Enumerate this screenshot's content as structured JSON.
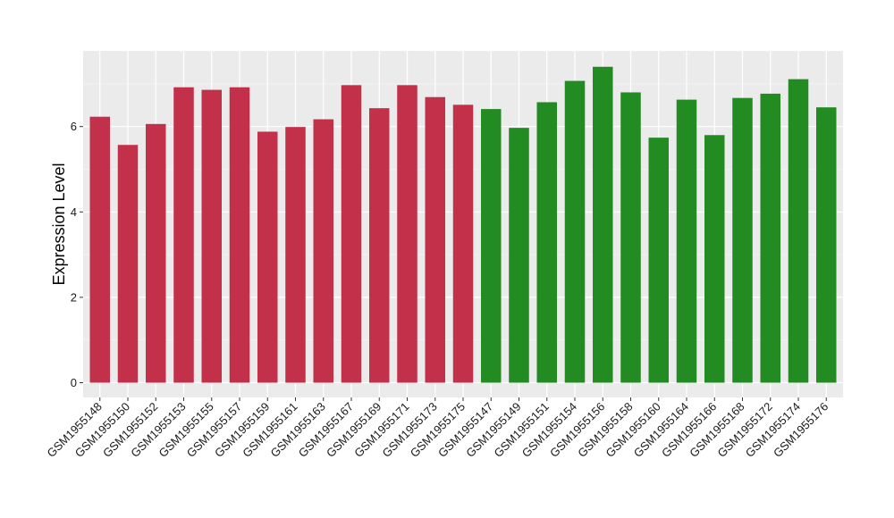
{
  "chart_data": {
    "type": "bar",
    "title": "",
    "xlabel": "",
    "ylabel": "Expression Level",
    "ylim": [
      0,
      7.75
    ],
    "yticks": [
      0,
      2,
      4,
      6
    ],
    "grid": true,
    "panel_background": "#ebebeb",
    "categories": [
      "GSM1955148",
      "GSM1955150",
      "GSM1955152",
      "GSM1955153",
      "GSM1955155",
      "GSM1955157",
      "GSM1955159",
      "GSM1955161",
      "GSM1955163",
      "GSM1955167",
      "GSM1955169",
      "GSM1955171",
      "GSM1955173",
      "GSM1955175",
      "GSM1955147",
      "GSM1955149",
      "GSM1955151",
      "GSM1955154",
      "GSM1955156",
      "GSM1955158",
      "GSM1955160",
      "GSM1955164",
      "GSM1955166",
      "GSM1955168",
      "GSM1955172",
      "GSM1955174",
      "GSM1955176"
    ],
    "values": [
      6.23,
      5.57,
      6.06,
      6.92,
      6.86,
      6.92,
      5.88,
      5.99,
      6.17,
      6.97,
      6.43,
      6.97,
      6.69,
      6.51,
      6.41,
      5.97,
      6.57,
      7.07,
      7.4,
      6.8,
      5.74,
      6.63,
      5.8,
      6.67,
      6.77,
      7.11,
      6.45
    ],
    "bar_colors": [
      "#c3304a",
      "#c3304a",
      "#c3304a",
      "#c3304a",
      "#c3304a",
      "#c3304a",
      "#c3304a",
      "#c3304a",
      "#c3304a",
      "#c3304a",
      "#c3304a",
      "#c3304a",
      "#c3304a",
      "#c3304a",
      "#228b22",
      "#228b22",
      "#228b22",
      "#228b22",
      "#228b22",
      "#228b22",
      "#228b22",
      "#228b22",
      "#228b22",
      "#228b22",
      "#228b22",
      "#228b22",
      "#228b22"
    ]
  }
}
